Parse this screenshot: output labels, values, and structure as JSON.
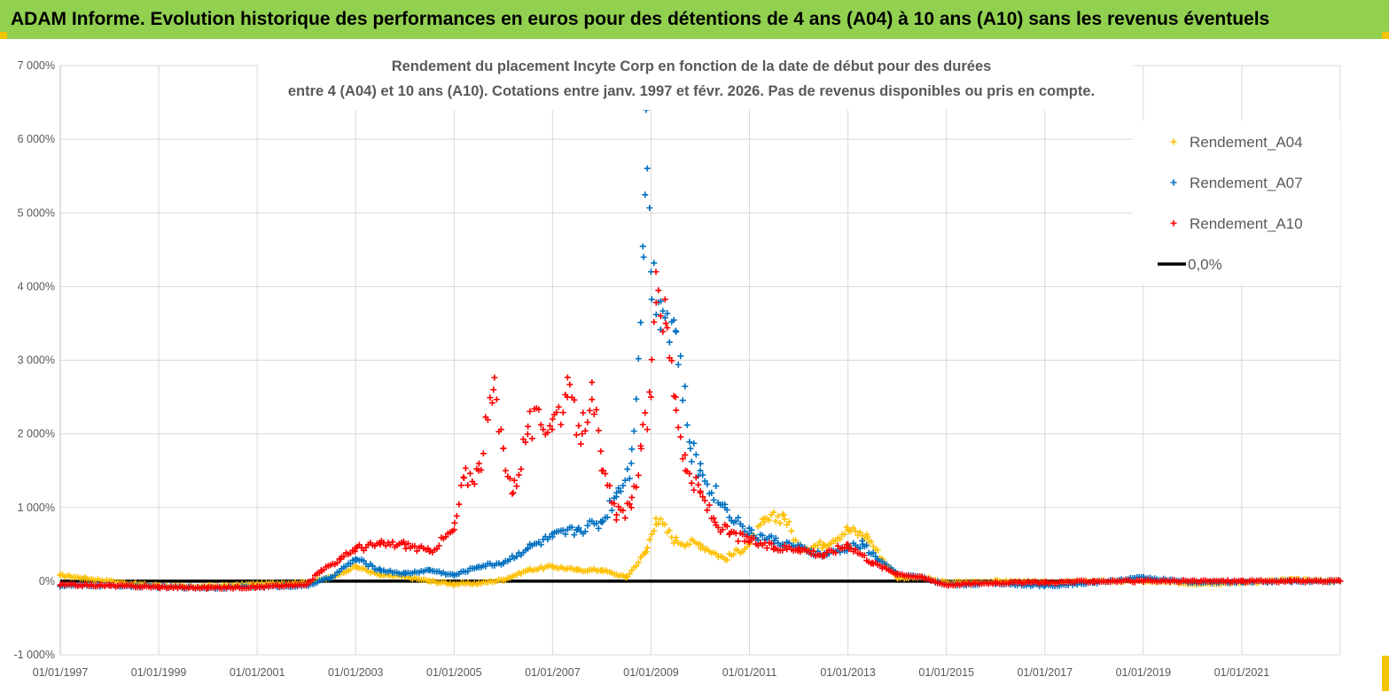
{
  "header": {
    "title": "ADAM Informe. Evolution historique des performances en euros pour des détentions de 4 ans (A04) à 10 ans (A10) sans les revenus éventuels"
  },
  "colors": {
    "banner": "#92d050",
    "a04": "#ffc000",
    "a07": "#0070c0",
    "a10": "#ff0000",
    "zero": "#000000"
  },
  "chart_data": {
    "type": "scatter",
    "title": "Rendement du placement Incyte Corp en fonction de la date de début pour des durées",
    "subtitle": "entre 4 (A04) et 10 ans (A10). Cotations entre janv. 1997 et févr. 2026. Pas de revenus disponibles ou pris en compte.",
    "y_ticks": [
      "-1 000%",
      "0%",
      "1 000%",
      "2 000%",
      "3 000%",
      "4 000%",
      "5 000%",
      "6 000%",
      "7 000%"
    ],
    "ylim": [
      -1000,
      7000
    ],
    "x_ticks": [
      "01/01/1997",
      "01/01/1999",
      "01/01/2001",
      "01/01/2003",
      "01/01/2005",
      "01/01/2007",
      "01/01/2009",
      "01/01/2011",
      "01/01/2013",
      "01/01/2015",
      "01/01/2017",
      "01/01/2019",
      "01/01/2021"
    ],
    "xlim": [
      1997.0,
      2023.0
    ],
    "legend_position": "top-right",
    "series": [
      {
        "name": "Rendement_A04",
        "color": "#ffc000",
        "marker": "+",
        "x": [
          1997.0,
          1997.5,
          1998.0,
          1998.5,
          1999.0,
          1999.5,
          2000.0,
          2000.5,
          2001.0,
          2001.5,
          2002.0,
          2002.5,
          2003.0,
          2003.5,
          2004.0,
          2004.5,
          2005.0,
          2005.5,
          2006.0,
          2006.5,
          2007.0,
          2007.5,
          2008.0,
          2008.5,
          2008.9,
          2009.1,
          2009.5,
          2010.0,
          2010.5,
          2011.0,
          2011.3,
          2011.7,
          2012.0,
          2012.5,
          2013.0,
          2013.4,
          2013.7,
          2014.0,
          2014.5,
          2015.0,
          2016.0,
          2017.0,
          2018.0,
          2019.0,
          2020.0,
          2021.0,
          2022.0,
          2023.0
        ],
        "y": [
          80,
          40,
          0,
          -40,
          -60,
          -80,
          -70,
          -60,
          -40,
          -30,
          -20,
          50,
          200,
          80,
          60,
          0,
          -40,
          -30,
          20,
          150,
          200,
          150,
          150,
          50,
          400,
          850,
          550,
          500,
          300,
          500,
          800,
          900,
          450,
          500,
          700,
          600,
          300,
          50,
          50,
          -20,
          0,
          -20,
          0,
          0,
          -30,
          -20,
          20,
          0
        ]
      },
      {
        "name": "Rendement_A07",
        "color": "#0070c0",
        "marker": "+",
        "x": [
          1997.0,
          1998.0,
          1999.0,
          2000.0,
          2001.0,
          2002.0,
          2002.5,
          2003.0,
          2003.5,
          2004.0,
          2004.5,
          2005.0,
          2005.5,
          2006.0,
          2006.5,
          2007.0,
          2007.5,
          2008.0,
          2008.3,
          2008.6,
          2008.85,
          2008.9,
          2009.0,
          2009.2,
          2009.5,
          2009.8,
          2010.0,
          2010.5,
          2011.0,
          2011.5,
          2012.0,
          2012.5,
          2013.0,
          2013.3,
          2013.6,
          2014.0,
          2014.5,
          2015.0,
          2016.0,
          2017.0,
          2018.0,
          2019.0,
          2020.0,
          2021.0,
          2022.0,
          2023.0
        ],
        "y": [
          -60,
          -60,
          -80,
          -90,
          -80,
          -60,
          50,
          300,
          150,
          100,
          150,
          80,
          200,
          250,
          450,
          600,
          700,
          800,
          1200,
          1600,
          4400,
          6400,
          4200,
          3800,
          3400,
          1800,
          1500,
          1000,
          650,
          550,
          450,
          350,
          450,
          500,
          300,
          100,
          50,
          -50,
          -30,
          -60,
          -20,
          50,
          -20,
          -10,
          0,
          0
        ]
      },
      {
        "name": "Rendement_A10",
        "color": "#ff0000",
        "marker": "+",
        "x": [
          1997.0,
          1998.0,
          1999.0,
          2000.0,
          2001.0,
          2002.0,
          2002.3,
          2002.7,
          2003.0,
          2003.5,
          2004.0,
          2004.5,
          2005.0,
          2005.2,
          2005.5,
          2005.8,
          2006.0,
          2006.2,
          2006.5,
          2007.0,
          2007.3,
          2007.6,
          2007.8,
          2008.0,
          2008.3,
          2008.6,
          2008.8,
          2009.0,
          2009.1,
          2009.3,
          2009.5,
          2009.7,
          2010.0,
          2010.3,
          2010.6,
          2011.0,
          2011.5,
          2012.0,
          2012.5,
          2013.0,
          2013.5,
          2014.0,
          2014.5,
          2015.0,
          2016.0,
          2017.0,
          2018.0,
          2019.0,
          2020.0,
          2021.0,
          2022.0,
          2023.0
        ],
        "y": [
          -50,
          -60,
          -80,
          -90,
          -80,
          -50,
          150,
          300,
          450,
          500,
          500,
          400,
          700,
          1400,
          1500,
          2600,
          1800,
          1200,
          2100,
          2200,
          2500,
          2000,
          2700,
          1500,
          900,
          1000,
          1800,
          2500,
          4200,
          3500,
          2500,
          1500,
          1200,
          800,
          650,
          550,
          450,
          450,
          350,
          500,
          250,
          100,
          50,
          -50,
          -20,
          -20,
          0,
          0,
          0,
          0,
          0,
          0
        ]
      },
      {
        "name": "0,0%",
        "color": "#000000",
        "marker": "line",
        "x": [
          1997.0,
          2023.0
        ],
        "y": [
          0,
          0
        ]
      }
    ]
  }
}
